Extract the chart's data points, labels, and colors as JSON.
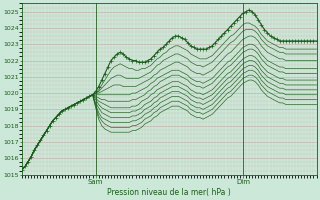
{
  "xlabel": "Pression niveau de la mer( hPa )",
  "ylim": [
    1015,
    1025.5
  ],
  "xlim": [
    0,
    96
  ],
  "yticks": [
    1015,
    1016,
    1017,
    1018,
    1019,
    1020,
    1021,
    1022,
    1023,
    1024,
    1025
  ],
  "xtick_positions": [
    24,
    72
  ],
  "xtick_labels": [
    "Sam",
    "Dim"
  ],
  "vline_positions": [
    24,
    72
  ],
  "bg_color": "#cce8d8",
  "grid_color": "#c8a0a0",
  "line_color": "#1a5c1a",
  "n_steps": 97,
  "main_line": [
    1015.3,
    1015.5,
    1015.8,
    1016.1,
    1016.5,
    1016.8,
    1017.1,
    1017.4,
    1017.7,
    1018.0,
    1018.3,
    1018.5,
    1018.7,
    1018.9,
    1019.0,
    1019.1,
    1019.2,
    1019.3,
    1019.4,
    1019.5,
    1019.6,
    1019.7,
    1019.8,
    1019.9,
    1020.1,
    1020.4,
    1020.8,
    1021.2,
    1021.6,
    1022.0,
    1022.2,
    1022.4,
    1022.5,
    1022.4,
    1022.2,
    1022.1,
    1022.0,
    1022.0,
    1021.9,
    1021.9,
    1021.9,
    1022.0,
    1022.1,
    1022.3,
    1022.5,
    1022.7,
    1022.8,
    1023.0,
    1023.2,
    1023.4,
    1023.5,
    1023.5,
    1023.4,
    1023.3,
    1023.1,
    1022.9,
    1022.8,
    1022.7,
    1022.7,
    1022.7,
    1022.7,
    1022.8,
    1022.9,
    1023.1,
    1023.3,
    1023.5,
    1023.7,
    1023.9,
    1024.1,
    1024.3,
    1024.5,
    1024.7,
    1024.9,
    1025.0,
    1025.1,
    1025.0,
    1024.8,
    1024.5,
    1024.2,
    1023.9,
    1023.7,
    1023.5,
    1023.4,
    1023.3,
    1023.2,
    1023.2,
    1023.2,
    1023.2,
    1023.2,
    1023.2,
    1023.2,
    1023.2,
    1023.2,
    1023.2,
    1023.2,
    1023.2,
    1023.2
  ],
  "ensemble_lines": [
    [
      1015.3,
      1015.5,
      1015.8,
      1016.1,
      1016.5,
      1016.8,
      1017.1,
      1017.4,
      1017.7,
      1018.0,
      1018.3,
      1018.5,
      1018.7,
      1018.9,
      1019.0,
      1019.1,
      1019.2,
      1019.3,
      1019.4,
      1019.5,
      1019.6,
      1019.7,
      1019.8,
      1019.9,
      1020.0,
      1020.2,
      1020.5,
      1020.8,
      1021.1,
      1021.4,
      1021.6,
      1021.7,
      1021.8,
      1021.7,
      1021.6,
      1021.5,
      1021.5,
      1021.4,
      1021.4,
      1021.5,
      1021.5,
      1021.6,
      1021.7,
      1021.9,
      1022.1,
      1022.2,
      1022.4,
      1022.5,
      1022.7,
      1022.8,
      1022.9,
      1022.9,
      1022.8,
      1022.7,
      1022.6,
      1022.4,
      1022.3,
      1022.2,
      1022.1,
      1022.1,
      1022.1,
      1022.2,
      1022.3,
      1022.5,
      1022.7,
      1022.9,
      1023.1,
      1023.3,
      1023.5,
      1023.6,
      1023.8,
      1024.0,
      1024.2,
      1024.3,
      1024.3,
      1024.2,
      1024.1,
      1023.9,
      1023.6,
      1023.4,
      1023.2,
      1023.1,
      1023.0,
      1022.9,
      1022.8,
      1022.8,
      1022.7,
      1022.7,
      1022.7,
      1022.7,
      1022.7,
      1022.7,
      1022.7,
      1022.7,
      1022.7,
      1022.7,
      1022.7
    ],
    [
      1015.3,
      1015.5,
      1015.8,
      1016.1,
      1016.5,
      1016.8,
      1017.1,
      1017.4,
      1017.7,
      1018.0,
      1018.3,
      1018.5,
      1018.7,
      1018.9,
      1019.0,
      1019.1,
      1019.2,
      1019.3,
      1019.4,
      1019.5,
      1019.6,
      1019.7,
      1019.8,
      1019.9,
      1020.0,
      1020.1,
      1020.3,
      1020.5,
      1020.7,
      1020.9,
      1021.0,
      1021.1,
      1021.1,
      1021.0,
      1020.9,
      1020.9,
      1020.9,
      1020.9,
      1020.9,
      1021.0,
      1021.1,
      1021.2,
      1021.3,
      1021.5,
      1021.7,
      1021.8,
      1022.0,
      1022.1,
      1022.2,
      1022.3,
      1022.4,
      1022.4,
      1022.3,
      1022.2,
      1022.1,
      1021.9,
      1021.8,
      1021.7,
      1021.7,
      1021.6,
      1021.7,
      1021.8,
      1021.9,
      1022.1,
      1022.3,
      1022.5,
      1022.7,
      1022.9,
      1023.1,
      1023.2,
      1023.4,
      1023.6,
      1023.8,
      1023.9,
      1023.9,
      1023.9,
      1023.8,
      1023.6,
      1023.3,
      1023.1,
      1022.9,
      1022.8,
      1022.7,
      1022.6,
      1022.5,
      1022.5,
      1022.4,
      1022.4,
      1022.4,
      1022.4,
      1022.4,
      1022.4,
      1022.4,
      1022.4,
      1022.4,
      1022.4,
      1022.4
    ],
    [
      1015.3,
      1015.5,
      1015.8,
      1016.1,
      1016.5,
      1016.8,
      1017.1,
      1017.4,
      1017.7,
      1018.0,
      1018.3,
      1018.5,
      1018.7,
      1018.9,
      1019.0,
      1019.1,
      1019.2,
      1019.3,
      1019.4,
      1019.5,
      1019.6,
      1019.7,
      1019.8,
      1019.9,
      1020.0,
      1020.0,
      1020.1,
      1020.2,
      1020.3,
      1020.4,
      1020.5,
      1020.5,
      1020.5,
      1020.4,
      1020.4,
      1020.4,
      1020.4,
      1020.4,
      1020.5,
      1020.6,
      1020.7,
      1020.8,
      1020.9,
      1021.1,
      1021.2,
      1021.4,
      1021.5,
      1021.6,
      1021.7,
      1021.8,
      1021.9,
      1021.9,
      1021.8,
      1021.7,
      1021.6,
      1021.4,
      1021.3,
      1021.2,
      1021.2,
      1021.1,
      1021.2,
      1021.3,
      1021.4,
      1021.6,
      1021.8,
      1022.0,
      1022.2,
      1022.4,
      1022.5,
      1022.7,
      1022.9,
      1023.1,
      1023.3,
      1023.4,
      1023.5,
      1023.5,
      1023.4,
      1023.2,
      1022.9,
      1022.7,
      1022.5,
      1022.4,
      1022.3,
      1022.2,
      1022.1,
      1022.1,
      1022.0,
      1022.0,
      1022.0,
      1022.0,
      1022.0,
      1022.0,
      1022.0,
      1022.0,
      1022.0,
      1022.0,
      1022.0
    ],
    [
      1015.3,
      1015.5,
      1015.8,
      1016.1,
      1016.5,
      1016.8,
      1017.1,
      1017.4,
      1017.7,
      1018.0,
      1018.3,
      1018.5,
      1018.7,
      1018.9,
      1019.0,
      1019.1,
      1019.2,
      1019.3,
      1019.4,
      1019.5,
      1019.6,
      1019.7,
      1019.8,
      1019.9,
      1019.9,
      1019.9,
      1019.9,
      1019.9,
      1019.9,
      1019.9,
      1019.9,
      1019.9,
      1019.9,
      1019.9,
      1019.9,
      1019.9,
      1020.0,
      1020.0,
      1020.1,
      1020.2,
      1020.3,
      1020.4,
      1020.6,
      1020.7,
      1020.9,
      1021.0,
      1021.1,
      1021.2,
      1021.3,
      1021.4,
      1021.4,
      1021.4,
      1021.3,
      1021.2,
      1021.1,
      1020.9,
      1020.8,
      1020.7,
      1020.7,
      1020.6,
      1020.7,
      1020.8,
      1020.9,
      1021.1,
      1021.3,
      1021.5,
      1021.7,
      1021.9,
      1022.0,
      1022.2,
      1022.4,
      1022.6,
      1022.8,
      1022.9,
      1023.0,
      1023.0,
      1022.9,
      1022.7,
      1022.4,
      1022.2,
      1022.0,
      1021.9,
      1021.8,
      1021.7,
      1021.6,
      1021.6,
      1021.5,
      1021.5,
      1021.5,
      1021.5,
      1021.5,
      1021.5,
      1021.5,
      1021.5,
      1021.5,
      1021.5,
      1021.5
    ],
    [
      1015.3,
      1015.5,
      1015.8,
      1016.1,
      1016.5,
      1016.8,
      1017.1,
      1017.4,
      1017.7,
      1018.0,
      1018.3,
      1018.5,
      1018.7,
      1018.9,
      1019.0,
      1019.1,
      1019.2,
      1019.3,
      1019.4,
      1019.5,
      1019.6,
      1019.7,
      1019.8,
      1019.9,
      1019.8,
      1019.7,
      1019.6,
      1019.6,
      1019.5,
      1019.5,
      1019.5,
      1019.5,
      1019.5,
      1019.5,
      1019.5,
      1019.5,
      1019.6,
      1019.6,
      1019.7,
      1019.8,
      1019.9,
      1020.1,
      1020.2,
      1020.4,
      1020.5,
      1020.7,
      1020.8,
      1020.9,
      1021.0,
      1021.1,
      1021.1,
      1021.1,
      1021.0,
      1020.9,
      1020.8,
      1020.6,
      1020.5,
      1020.4,
      1020.4,
      1020.3,
      1020.4,
      1020.5,
      1020.6,
      1020.8,
      1021.0,
      1021.2,
      1021.4,
      1021.6,
      1021.7,
      1021.9,
      1022.1,
      1022.3,
      1022.5,
      1022.6,
      1022.7,
      1022.7,
      1022.6,
      1022.4,
      1022.1,
      1021.9,
      1021.7,
      1021.6,
      1021.5,
      1021.4,
      1021.3,
      1021.3,
      1021.2,
      1021.2,
      1021.2,
      1021.2,
      1021.2,
      1021.2,
      1021.2,
      1021.2,
      1021.2,
      1021.2,
      1021.2
    ],
    [
      1015.3,
      1015.5,
      1015.8,
      1016.1,
      1016.5,
      1016.8,
      1017.1,
      1017.4,
      1017.7,
      1018.0,
      1018.3,
      1018.5,
      1018.7,
      1018.9,
      1019.0,
      1019.1,
      1019.2,
      1019.3,
      1019.4,
      1019.5,
      1019.6,
      1019.7,
      1019.8,
      1019.9,
      1019.7,
      1019.5,
      1019.4,
      1019.3,
      1019.2,
      1019.1,
      1019.1,
      1019.1,
      1019.1,
      1019.1,
      1019.1,
      1019.1,
      1019.2,
      1019.2,
      1019.3,
      1019.5,
      1019.6,
      1019.7,
      1019.9,
      1020.0,
      1020.2,
      1020.3,
      1020.4,
      1020.5,
      1020.6,
      1020.7,
      1020.7,
      1020.7,
      1020.6,
      1020.5,
      1020.4,
      1020.2,
      1020.1,
      1020.0,
      1020.0,
      1019.9,
      1020.0,
      1020.1,
      1020.2,
      1020.4,
      1020.6,
      1020.8,
      1021.0,
      1021.2,
      1021.3,
      1021.5,
      1021.7,
      1021.9,
      1022.1,
      1022.2,
      1022.3,
      1022.3,
      1022.2,
      1022.0,
      1021.7,
      1021.5,
      1021.3,
      1021.2,
      1021.1,
      1021.0,
      1020.9,
      1020.9,
      1020.8,
      1020.8,
      1020.8,
      1020.8,
      1020.8,
      1020.8,
      1020.8,
      1020.8,
      1020.8,
      1020.8,
      1020.8
    ],
    [
      1015.3,
      1015.5,
      1015.8,
      1016.1,
      1016.5,
      1016.8,
      1017.1,
      1017.4,
      1017.7,
      1018.0,
      1018.3,
      1018.5,
      1018.7,
      1018.9,
      1019.0,
      1019.1,
      1019.2,
      1019.3,
      1019.4,
      1019.5,
      1019.6,
      1019.7,
      1019.8,
      1019.9,
      1019.6,
      1019.3,
      1019.1,
      1019.0,
      1018.9,
      1018.8,
      1018.8,
      1018.8,
      1018.8,
      1018.8,
      1018.8,
      1018.8,
      1018.9,
      1018.9,
      1019.0,
      1019.1,
      1019.3,
      1019.4,
      1019.5,
      1019.7,
      1019.8,
      1020.0,
      1020.1,
      1020.2,
      1020.3,
      1020.4,
      1020.4,
      1020.4,
      1020.3,
      1020.2,
      1020.1,
      1019.9,
      1019.8,
      1019.7,
      1019.7,
      1019.6,
      1019.7,
      1019.8,
      1019.9,
      1020.1,
      1020.3,
      1020.5,
      1020.7,
      1020.9,
      1021.0,
      1021.2,
      1021.4,
      1021.6,
      1021.8,
      1021.9,
      1022.0,
      1022.0,
      1021.9,
      1021.7,
      1021.4,
      1021.2,
      1021.0,
      1020.9,
      1020.8,
      1020.7,
      1020.6,
      1020.6,
      1020.5,
      1020.5,
      1020.5,
      1020.5,
      1020.5,
      1020.5,
      1020.5,
      1020.5,
      1020.5,
      1020.5,
      1020.5
    ],
    [
      1015.3,
      1015.5,
      1015.8,
      1016.1,
      1016.5,
      1016.8,
      1017.1,
      1017.4,
      1017.7,
      1018.0,
      1018.3,
      1018.5,
      1018.7,
      1018.9,
      1019.0,
      1019.1,
      1019.2,
      1019.3,
      1019.4,
      1019.5,
      1019.6,
      1019.7,
      1019.8,
      1019.9,
      1019.4,
      1019.1,
      1018.8,
      1018.7,
      1018.6,
      1018.5,
      1018.5,
      1018.5,
      1018.5,
      1018.5,
      1018.5,
      1018.5,
      1018.6,
      1018.6,
      1018.7,
      1018.8,
      1019.0,
      1019.1,
      1019.2,
      1019.4,
      1019.5,
      1019.7,
      1019.8,
      1019.9,
      1020.0,
      1020.1,
      1020.1,
      1020.1,
      1020.0,
      1019.9,
      1019.8,
      1019.6,
      1019.5,
      1019.4,
      1019.4,
      1019.3,
      1019.4,
      1019.5,
      1019.6,
      1019.8,
      1020.0,
      1020.2,
      1020.4,
      1020.6,
      1020.7,
      1020.9,
      1021.1,
      1021.3,
      1021.5,
      1021.6,
      1021.7,
      1021.7,
      1021.6,
      1021.4,
      1021.1,
      1020.9,
      1020.7,
      1020.6,
      1020.5,
      1020.4,
      1020.3,
      1020.3,
      1020.2,
      1020.2,
      1020.2,
      1020.2,
      1020.2,
      1020.2,
      1020.2,
      1020.2,
      1020.2,
      1020.2,
      1020.2
    ],
    [
      1015.3,
      1015.5,
      1015.8,
      1016.1,
      1016.5,
      1016.8,
      1017.1,
      1017.4,
      1017.7,
      1018.0,
      1018.3,
      1018.5,
      1018.7,
      1018.9,
      1019.0,
      1019.1,
      1019.2,
      1019.3,
      1019.4,
      1019.5,
      1019.6,
      1019.7,
      1019.8,
      1019.9,
      1019.3,
      1018.8,
      1018.5,
      1018.4,
      1018.3,
      1018.2,
      1018.2,
      1018.2,
      1018.2,
      1018.2,
      1018.2,
      1018.2,
      1018.3,
      1018.3,
      1018.4,
      1018.5,
      1018.7,
      1018.8,
      1018.9,
      1019.1,
      1019.2,
      1019.4,
      1019.5,
      1019.6,
      1019.7,
      1019.8,
      1019.8,
      1019.8,
      1019.7,
      1019.6,
      1019.5,
      1019.3,
      1019.2,
      1019.1,
      1019.1,
      1019.0,
      1019.1,
      1019.2,
      1019.3,
      1019.5,
      1019.7,
      1019.9,
      1020.1,
      1020.3,
      1020.4,
      1020.6,
      1020.8,
      1021.0,
      1021.2,
      1021.3,
      1021.4,
      1021.4,
      1021.3,
      1021.1,
      1020.8,
      1020.6,
      1020.4,
      1020.3,
      1020.2,
      1020.1,
      1020.0,
      1020.0,
      1019.9,
      1019.9,
      1019.9,
      1019.9,
      1019.9,
      1019.9,
      1019.9,
      1019.9,
      1019.9,
      1019.9,
      1019.9
    ],
    [
      1015.3,
      1015.5,
      1015.8,
      1016.1,
      1016.5,
      1016.8,
      1017.1,
      1017.4,
      1017.7,
      1018.0,
      1018.3,
      1018.5,
      1018.7,
      1018.9,
      1019.0,
      1019.1,
      1019.2,
      1019.3,
      1019.4,
      1019.5,
      1019.6,
      1019.7,
      1019.8,
      1019.9,
      1019.2,
      1018.6,
      1018.3,
      1018.1,
      1018.0,
      1017.9,
      1017.9,
      1017.9,
      1017.9,
      1017.9,
      1017.9,
      1017.9,
      1018.0,
      1018.0,
      1018.1,
      1018.2,
      1018.4,
      1018.5,
      1018.6,
      1018.8,
      1018.9,
      1019.1,
      1019.2,
      1019.3,
      1019.4,
      1019.5,
      1019.5,
      1019.5,
      1019.4,
      1019.3,
      1019.2,
      1019.0,
      1018.9,
      1018.8,
      1018.8,
      1018.7,
      1018.8,
      1018.9,
      1019.0,
      1019.2,
      1019.4,
      1019.6,
      1019.8,
      1020.0,
      1020.1,
      1020.3,
      1020.5,
      1020.7,
      1020.9,
      1021.0,
      1021.1,
      1021.1,
      1021.0,
      1020.8,
      1020.5,
      1020.3,
      1020.1,
      1020.0,
      1019.9,
      1019.8,
      1019.7,
      1019.7,
      1019.6,
      1019.6,
      1019.6,
      1019.6,
      1019.6,
      1019.6,
      1019.6,
      1019.6,
      1019.6,
      1019.6,
      1019.6
    ],
    [
      1015.3,
      1015.5,
      1015.8,
      1016.1,
      1016.5,
      1016.8,
      1017.1,
      1017.4,
      1017.7,
      1018.0,
      1018.3,
      1018.5,
      1018.7,
      1018.9,
      1019.0,
      1019.1,
      1019.2,
      1019.3,
      1019.4,
      1019.5,
      1019.6,
      1019.7,
      1019.8,
      1019.9,
      1019.1,
      1018.4,
      1018.0,
      1017.8,
      1017.7,
      1017.6,
      1017.6,
      1017.6,
      1017.6,
      1017.6,
      1017.6,
      1017.6,
      1017.7,
      1017.7,
      1017.8,
      1017.9,
      1018.1,
      1018.2,
      1018.3,
      1018.5,
      1018.6,
      1018.8,
      1018.9,
      1019.0,
      1019.1,
      1019.2,
      1019.2,
      1019.2,
      1019.1,
      1019.0,
      1018.9,
      1018.7,
      1018.6,
      1018.5,
      1018.5,
      1018.4,
      1018.5,
      1018.6,
      1018.7,
      1018.9,
      1019.1,
      1019.3,
      1019.5,
      1019.7,
      1019.8,
      1020.0,
      1020.2,
      1020.4,
      1020.6,
      1020.7,
      1020.8,
      1020.8,
      1020.7,
      1020.5,
      1020.2,
      1020.0,
      1019.8,
      1019.7,
      1019.6,
      1019.5,
      1019.4,
      1019.4,
      1019.3,
      1019.3,
      1019.3,
      1019.3,
      1019.3,
      1019.3,
      1019.3,
      1019.3,
      1019.3,
      1019.3,
      1019.3
    ]
  ]
}
